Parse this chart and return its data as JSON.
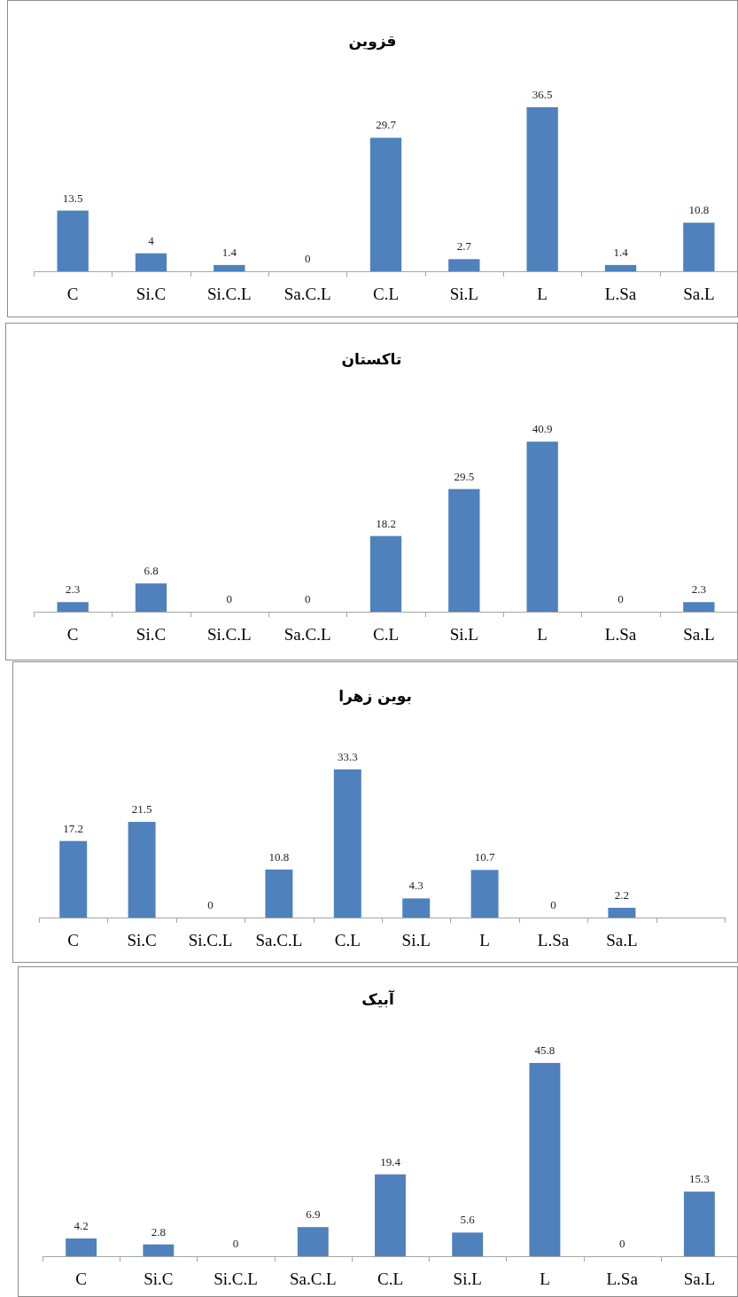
{
  "chart_data": [
    {
      "type": "bar",
      "title": "قزوین",
      "categories": [
        "C",
        "Si.C",
        "Si.C.L",
        "Sa.C.L",
        "C.L",
        "Si.L",
        "L",
        "L.Sa",
        "Sa.L"
      ],
      "values": [
        13.5,
        4,
        1.4,
        0,
        29.7,
        2.7,
        36.5,
        1.4,
        10.8
      ],
      "color": "#4f81bd",
      "data_labels": true
    },
    {
      "type": "bar",
      "title": "تاکستان",
      "categories": [
        "C",
        "Si.C",
        "Si.C.L",
        "Sa.C.L",
        "C.L",
        "Si.L",
        "L",
        "L.Sa",
        "Sa.L"
      ],
      "values": [
        2.3,
        6.8,
        0,
        0,
        18.2,
        29.5,
        40.9,
        0,
        2.3
      ],
      "color": "#4f81bd",
      "data_labels": true
    },
    {
      "type": "bar",
      "title": "بوین زهرا",
      "categories": [
        "C",
        "Si.C",
        "Si.C.L",
        "Sa.C.L",
        "C.L",
        "Si.L",
        "L",
        "L.Sa",
        "Sa.L",
        null
      ],
      "values": [
        17.2,
        21.5,
        0,
        10.8,
        33.3,
        4.3,
        10.7,
        0,
        2.2,
        null
      ],
      "color": "#4f81bd",
      "data_labels": true
    },
    {
      "type": "bar",
      "title": "آبیک",
      "categories": [
        "C",
        "Si.C",
        "Si.C.L",
        "Sa.C.L",
        "C.L",
        "Si.L",
        "L",
        "L.Sa",
        "Sa.L"
      ],
      "values": [
        4.2,
        2.8,
        0,
        6.9,
        19.4,
        5.6,
        45.8,
        0,
        15.3
      ],
      "color": "#4f81bd",
      "data_labels": true
    }
  ]
}
